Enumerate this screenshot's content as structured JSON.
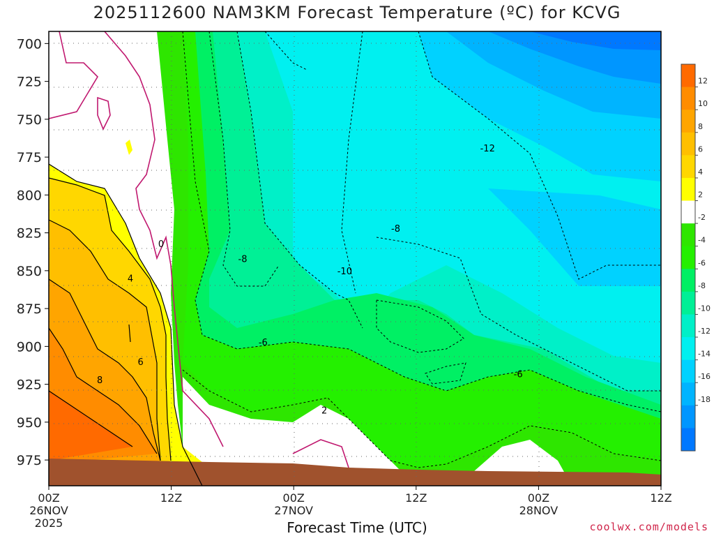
{
  "title": "2025112600 NAM3KM Forecast Temperature (ºC) for KCVG",
  "credit": "coolwx.com/models",
  "chart_data": {
    "type": "heatmap",
    "title": "2025112600 NAM3KM Forecast Temperature (ºC) for KCVG",
    "xlabel": "Forecast Time (UTC)",
    "ylabel": "",
    "x_tick_labels": [
      {
        "hour": 0,
        "lines": [
          "00Z",
          "26NOV",
          "2025"
        ]
      },
      {
        "hour": 12,
        "lines": [
          "12Z"
        ]
      },
      {
        "hour": 24,
        "lines": [
          "00Z",
          "27NOV"
        ]
      },
      {
        "hour": 36,
        "lines": [
          "12Z"
        ]
      },
      {
        "hour": 48,
        "lines": [
          "00Z",
          "28NOV"
        ]
      },
      {
        "hour": 60,
        "lines": [
          "12Z"
        ]
      }
    ],
    "xlim_hours": [
      0,
      60
    ],
    "y_ticks_hpa": [
      700,
      725,
      750,
      775,
      800,
      825,
      850,
      875,
      900,
      925,
      950,
      975
    ],
    "ylim_hpa": [
      992,
      692
    ],
    "grid": true,
    "colorbar": {
      "placement": "right",
      "labels": [
        "12",
        "10",
        "8",
        "6",
        "4",
        "2",
        "-2",
        "-4",
        "-6",
        "-8",
        "-10",
        "-12",
        "-14",
        "-16",
        "-18"
      ],
      "colors": [
        "#ff6a00",
        "#ff8c00",
        "#ffa500",
        "#ffbf00",
        "#ffd700",
        "#ffff00",
        "#ffffff",
        "#2ee600",
        "#24f000",
        "#00f064",
        "#00f096",
        "#00f0c8",
        "#00f0f0",
        "#00d2ff",
        "#00b4ff",
        "#0096ff",
        "#0078ff"
      ]
    },
    "contour_labels": [
      {
        "text": "0",
        "hour": 11,
        "hpa": 832
      },
      {
        "text": "4",
        "hour": 8,
        "hpa": 855
      },
      {
        "text": "6",
        "hour": 9,
        "hpa": 910
      },
      {
        "text": "8",
        "hour": 5,
        "hpa": 922
      },
      {
        "text": "-8",
        "hour": 19,
        "hpa": 842
      },
      {
        "text": "-10",
        "hour": 29,
        "hpa": 850
      },
      {
        "text": "-12",
        "hour": 43,
        "hpa": 769
      },
      {
        "text": "-8",
        "hour": 34,
        "hpa": 822
      },
      {
        "text": "-6",
        "hour": 21,
        "hpa": 897
      },
      {
        "text": "-6",
        "hour": 46,
        "hpa": 918
      },
      {
        "text": "2",
        "hour": 27,
        "hpa": 942
      }
    ],
    "temperature_pattern": [
      {
        "hour": 0,
        "hpa_975_degC": 11,
        "hpa_850_degC": 3,
        "hpa_700_degC": -1
      },
      {
        "hour": 6,
        "hpa_975_degC": 10,
        "hpa_850_degC": 5,
        "hpa_700_degC": 0
      },
      {
        "hour": 12,
        "hpa_975_degC": 2,
        "hpa_850_degC": -1,
        "hpa_700_degC": -2
      },
      {
        "hour": 18,
        "hpa_975_degC": 0,
        "hpa_850_degC": -7,
        "hpa_700_degC": -6
      },
      {
        "hour": 24,
        "hpa_975_degC": 0,
        "hpa_850_degC": -8,
        "hpa_700_degC": -9
      },
      {
        "hour": 30,
        "hpa_975_degC": -1,
        "hpa_850_degC": -10,
        "hpa_700_degC": -11
      },
      {
        "hour": 36,
        "hpa_975_degC": -3,
        "hpa_850_degC": -9,
        "hpa_700_degC": -12
      },
      {
        "hour": 42,
        "hpa_975_degC": -3,
        "hpa_850_degC": -10,
        "hpa_700_degC": -14
      },
      {
        "hour": 48,
        "hpa_975_degC": -2,
        "hpa_850_degC": -11,
        "hpa_700_degC": -16
      },
      {
        "hour": 54,
        "hpa_975_degC": -3,
        "hpa_850_degC": -12,
        "hpa_700_degC": -17
      },
      {
        "hour": 60,
        "hpa_975_degC": -4,
        "hpa_850_degC": -12,
        "hpa_700_degC": -18
      }
    ]
  }
}
